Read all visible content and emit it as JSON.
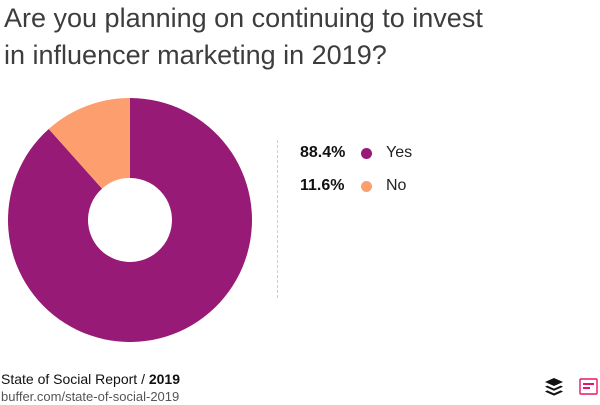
{
  "title": {
    "line1": "Are you planning on continuing to invest",
    "line2": "in influencer marketing in 2019?"
  },
  "chart_data": {
    "type": "pie",
    "title": "Are you planning on continuing to invest in influencer marketing in 2019?",
    "categories": [
      "Yes",
      "No"
    ],
    "values": [
      88.4,
      11.6
    ],
    "colors": [
      "#961a76",
      "#fd9e6e"
    ],
    "donut": true,
    "legend_position": "right",
    "legend": [
      {
        "pct": "88.4%",
        "label": "Yes"
      },
      {
        "pct": "11.6%",
        "label": "No"
      }
    ]
  },
  "footer": {
    "report_prefix": "State of Social Report / ",
    "report_year": "2019",
    "url": "buffer.com/state-of-social-2019"
  },
  "logos": {
    "buffer": "buffer-logo-icon",
    "ssr": "ssr-logo-icon",
    "ssr_accent": "#e8156a"
  }
}
